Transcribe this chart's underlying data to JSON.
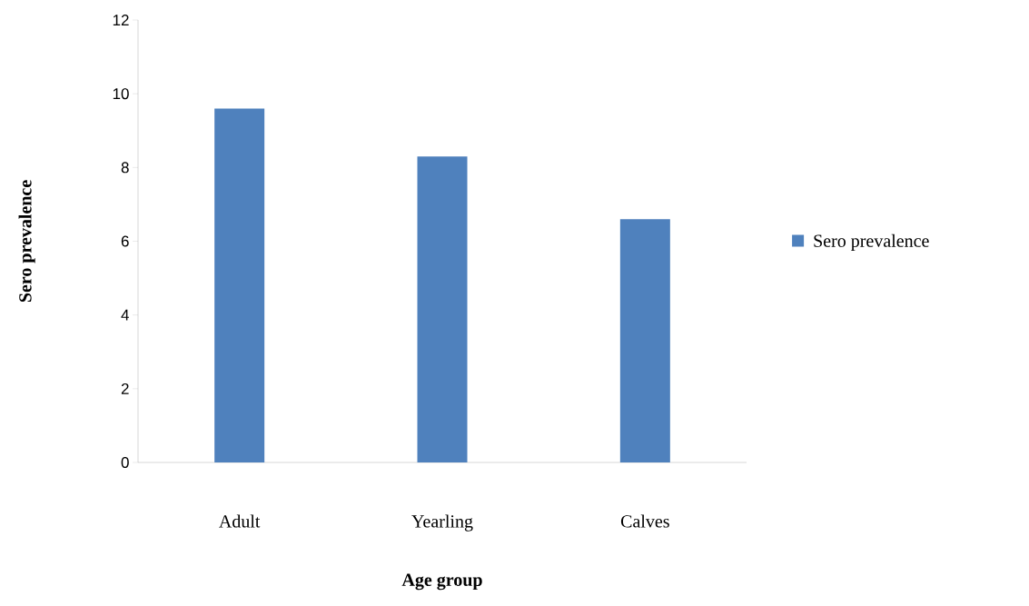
{
  "chart_data": {
    "type": "bar",
    "xlabel": "Age group",
    "ylabel": "Sero prevalence",
    "categories": [
      "Adult",
      "Yearling",
      "Calves"
    ],
    "series": [
      {
        "name": "Sero prevalence",
        "color": "#4f81bd",
        "values": [
          9.6,
          8.3,
          6.6
        ]
      }
    ],
    "ylim": [
      0,
      12
    ],
    "yticks": [
      0,
      2,
      4,
      6,
      8,
      10,
      12
    ],
    "legend": "right",
    "grid": false
  }
}
